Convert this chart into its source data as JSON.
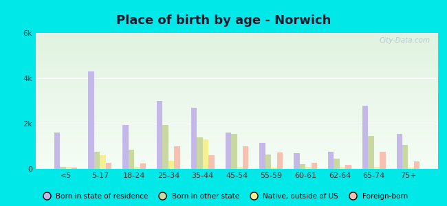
{
  "title": "Place of birth by age - Norwich",
  "categories": [
    "<5",
    "5-17",
    "18-24",
    "25-34",
    "35-44",
    "45-54",
    "55-59",
    "60-61",
    "62-64",
    "65-74",
    "75+"
  ],
  "series": {
    "Born in state of residence": [
      1600,
      4300,
      1950,
      3000,
      2700,
      1600,
      1150,
      700,
      750,
      2800,
      1550
    ],
    "Born in other state": [
      100,
      750,
      850,
      1950,
      1400,
      1550,
      650,
      200,
      450,
      1450,
      1050
    ],
    "Native, outside of US": [
      80,
      600,
      100,
      350,
      1300,
      100,
      50,
      80,
      80,
      80,
      50
    ],
    "Foreign-born": [
      50,
      280,
      230,
      1000,
      620,
      1000,
      720,
      270,
      180,
      750,
      320
    ]
  },
  "colors": {
    "Born in state of residence": "#c4b8e8",
    "Born in other state": "#c8d8a0",
    "Native, outside of US": "#f5ef90",
    "Foreign-born": "#f8c0b0"
  },
  "ylim": [
    0,
    6000
  ],
  "yticks": [
    0,
    2000,
    4000,
    6000
  ],
  "ytick_labels": [
    "0",
    "2k",
    "4k",
    "6k"
  ],
  "bg_top_color": "#f0faf8",
  "bg_bottom_color": "#d8edd8",
  "outer_background": "#00e8e8",
  "title_fontsize": 13,
  "watermark": "City-Data.com"
}
